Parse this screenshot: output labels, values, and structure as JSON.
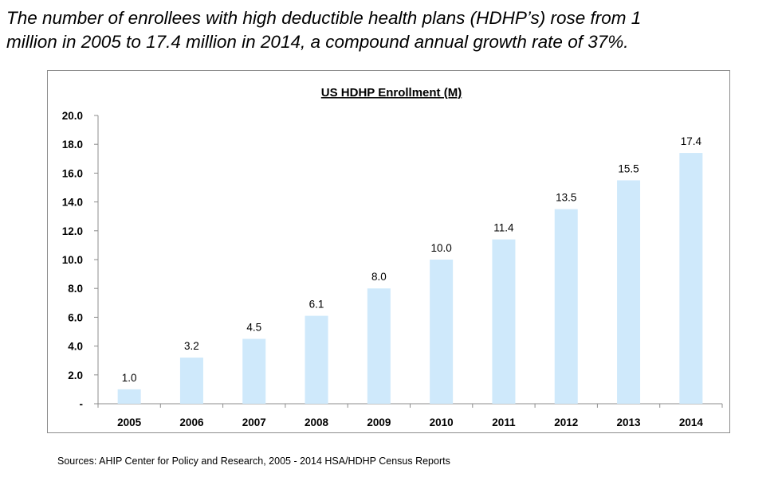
{
  "headline": {
    "line1": "The number of enrollees with high deductible health plans (HDHP’s) rose from 1",
    "line2": "million in 2005 to 17.4 million in 2014, a compound annual growth rate of 37%."
  },
  "chart_data": {
    "type": "bar",
    "title": "US HDHP Enrollment (M)",
    "xlabel": "",
    "ylabel": "",
    "categories": [
      "2005",
      "2006",
      "2007",
      "2008",
      "2009",
      "2010",
      "2011",
      "2012",
      "2013",
      "2014"
    ],
    "values": [
      1.0,
      3.2,
      4.5,
      6.1,
      8.0,
      10.0,
      11.4,
      13.5,
      15.5,
      17.4
    ],
    "data_labels": [
      "1.0",
      "3.2",
      "4.5",
      "6.1",
      "8.0",
      "10.0",
      "11.4",
      "13.5",
      "15.5",
      "17.4"
    ],
    "ylim": [
      0,
      20
    ],
    "yticks": [
      "20.0",
      "18.0",
      "16.0",
      "14.0",
      "12.0",
      "10.0",
      "8.0",
      "6.0",
      "4.0",
      "2.0",
      "-"
    ],
    "ytick_values": [
      20,
      18,
      16,
      14,
      12,
      10,
      8,
      6,
      4,
      2,
      0
    ],
    "grid": false,
    "legend": "none",
    "bar_color": "#cfe9fb",
    "axis_color": "#8c8c8c"
  },
  "sources": "Sources: AHIP Center for Policy and Research, 2005 - 2014 HSA/HDHP Census Reports"
}
